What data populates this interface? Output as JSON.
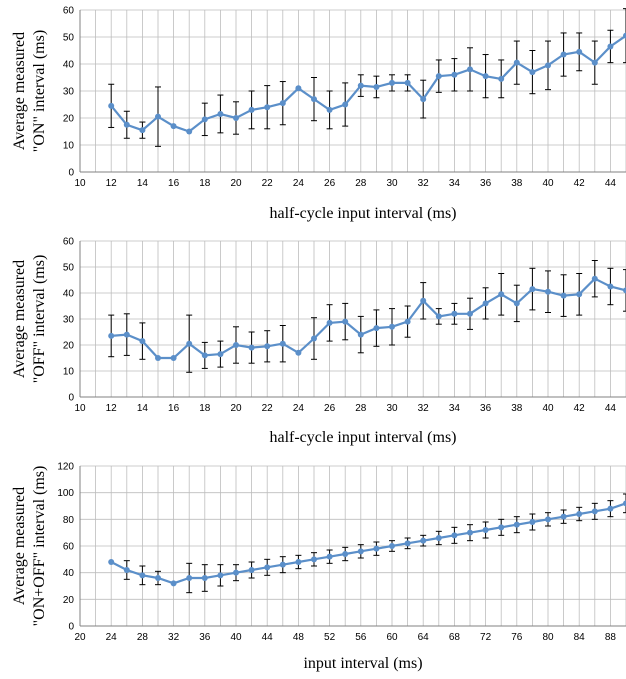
{
  "style": {
    "series_color": "#5b8fc9",
    "error_bar_color": "#000000",
    "grid_color": "#bdbdbd"
  },
  "chart_data": [
    {
      "type": "line",
      "ylabel_lines": [
        "Average measured",
        "\"ON\" interval (ms)"
      ],
      "xlabel": "half-cycle input interval (ms)",
      "xlim": [
        10,
        45
      ],
      "ylim": [
        0,
        60
      ],
      "xticks": [
        10,
        12,
        14,
        16,
        18,
        20,
        22,
        24,
        26,
        28,
        30,
        32,
        34,
        36,
        38,
        40,
        42,
        44
      ],
      "yticks": [
        0,
        10,
        20,
        30,
        40,
        50,
        60
      ],
      "grid": "vertical every 1 unit, horizontal at y ticks",
      "series": [
        {
          "x": [
            12,
            13,
            14,
            15,
            16,
            17,
            18,
            19,
            20,
            21,
            22,
            23,
            24,
            25,
            26,
            27,
            28,
            29,
            30,
            31,
            32,
            33,
            34,
            35,
            36,
            37,
            38,
            39,
            40,
            41,
            42,
            43,
            44,
            45
          ],
          "y": [
            24.5,
            17.5,
            15.5,
            20.5,
            17,
            15,
            19.5,
            21.5,
            20,
            23,
            24,
            25.5,
            31,
            27,
            23,
            25,
            32,
            31.5,
            33,
            33,
            27,
            35.5,
            36,
            38,
            35.5,
            34.5,
            40.5,
            37,
            39.5,
            43.5,
            44.5,
            40.5,
            46.5,
            50.5
          ],
          "err": [
            8,
            5,
            3,
            11,
            0,
            0,
            6,
            7,
            6,
            7,
            8,
            8,
            0,
            8,
            7,
            8,
            4,
            4,
            3,
            3,
            7,
            6,
            6,
            8,
            8,
            7,
            8,
            8,
            9,
            8,
            7,
            8,
            6,
            10
          ]
        }
      ]
    },
    {
      "type": "line",
      "ylabel_lines": [
        "Average measured",
        "\"OFF\" interval (ms)"
      ],
      "xlabel": "half-cycle input interval (ms)",
      "xlim": [
        10,
        45
      ],
      "ylim": [
        0,
        60
      ],
      "xticks": [
        10,
        12,
        14,
        16,
        18,
        20,
        22,
        24,
        26,
        28,
        30,
        32,
        34,
        36,
        38,
        40,
        42,
        44
      ],
      "yticks": [
        0,
        10,
        20,
        30,
        40,
        50,
        60
      ],
      "grid": "vertical every 1 unit, horizontal at y ticks",
      "series": [
        {
          "x": [
            12,
            13,
            14,
            15,
            16,
            17,
            18,
            19,
            20,
            21,
            22,
            23,
            24,
            25,
            26,
            27,
            28,
            29,
            30,
            31,
            32,
            33,
            34,
            35,
            36,
            37,
            38,
            39,
            40,
            41,
            42,
            43,
            44,
            45
          ],
          "y": [
            23.5,
            24,
            21.5,
            15,
            15,
            20.5,
            16,
            16.5,
            20,
            19,
            19.5,
            20.5,
            17,
            22.5,
            28.5,
            29,
            24,
            26.5,
            27,
            29,
            37,
            31,
            32,
            32,
            36,
            39.5,
            36,
            41.5,
            40.5,
            39,
            39.5,
            45.5,
            42.5,
            41
          ],
          "err": [
            8,
            8,
            7,
            0,
            0,
            11,
            5,
            5,
            7,
            6,
            6,
            7,
            0,
            8,
            7,
            7,
            7,
            7,
            7,
            6,
            7,
            3,
            4,
            6,
            6,
            8,
            7,
            8,
            8,
            8,
            8,
            7,
            7,
            8
          ]
        }
      ]
    },
    {
      "type": "line",
      "ylabel_lines": [
        "Average measured",
        "\"ON+OFF\" interval (ms)"
      ],
      "xlabel": "input interval (ms)",
      "xlim": [
        20,
        90
      ],
      "ylim": [
        0,
        120
      ],
      "xticks": [
        20,
        24,
        28,
        32,
        36,
        40,
        44,
        48,
        52,
        56,
        60,
        64,
        68,
        72,
        76,
        80,
        84,
        88
      ],
      "yticks": [
        0,
        20,
        40,
        60,
        80,
        100,
        120
      ],
      "grid": "vertical every 2 units, horizontal at y ticks",
      "series": [
        {
          "x": [
            24,
            26,
            28,
            30,
            32,
            34,
            36,
            38,
            40,
            42,
            44,
            46,
            48,
            50,
            52,
            54,
            56,
            58,
            60,
            62,
            64,
            66,
            68,
            70,
            72,
            74,
            76,
            78,
            80,
            82,
            84,
            86,
            88,
            90
          ],
          "y": [
            48,
            42,
            38,
            36,
            32,
            36,
            36,
            38,
            40,
            42,
            44,
            46,
            48,
            50,
            52,
            54,
            56,
            58,
            60,
            62,
            64,
            66,
            68,
            70,
            72,
            74,
            76,
            78,
            80,
            82,
            84,
            86,
            88,
            92
          ],
          "err": [
            0,
            7,
            7,
            5,
            0,
            11,
            10,
            8,
            6,
            6,
            6,
            6,
            5,
            5,
            5,
            5,
            5,
            5,
            4,
            4,
            4,
            5,
            6,
            6,
            6,
            6,
            6,
            6,
            5,
            5,
            5,
            6,
            6,
            7
          ]
        }
      ]
    }
  ]
}
